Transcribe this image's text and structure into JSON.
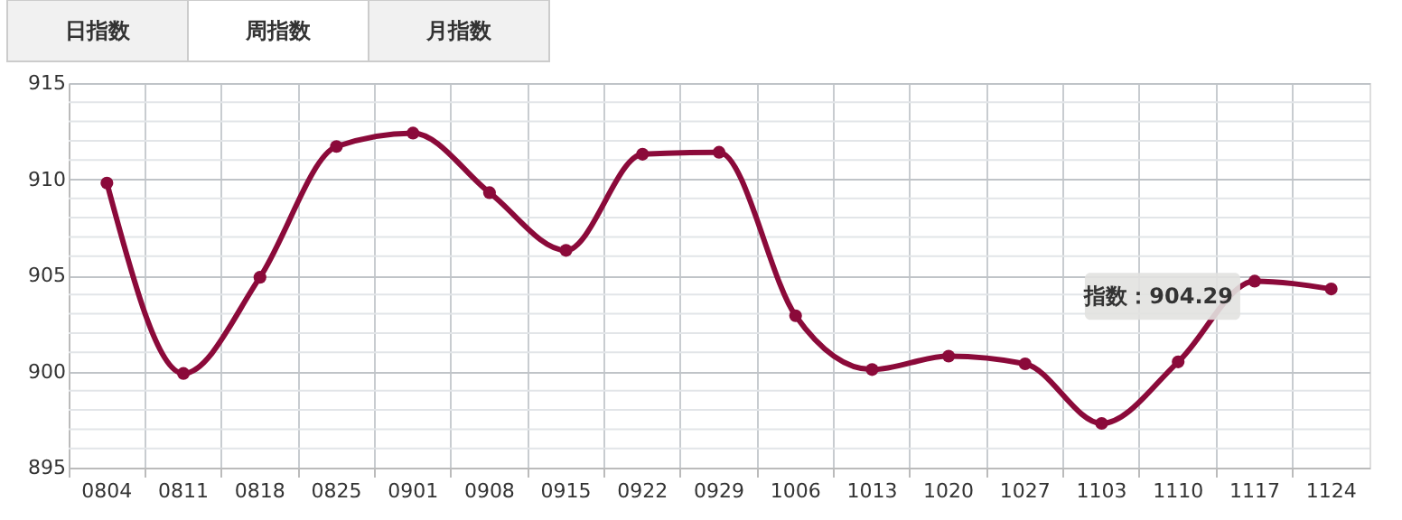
{
  "chart_data": {
    "type": "line",
    "categories": [
      "0804",
      "0811",
      "0818",
      "0825",
      "0901",
      "0908",
      "0915",
      "0922",
      "0929",
      "1006",
      "1013",
      "1020",
      "1027",
      "1103",
      "1110",
      "1117",
      "1124"
    ],
    "series": [
      {
        "color": "#8b0a3a",
        "values": [
          909.8,
          899.9,
          904.9,
          911.7,
          912.4,
          909.3,
          906.3,
          911.3,
          911.4,
          902.9,
          900.1,
          900.8,
          900.4,
          897.3,
          900.5,
          904.7,
          904.29
        ]
      }
    ],
    "ylim": [
      895,
      915
    ],
    "yticks": [
      895,
      {
        "value": 896,
        "label": null
      },
      {
        "value": 897,
        "label": null
      },
      {
        "value": 898,
        "label": null
      },
      {
        "value": 899,
        "label": null
      },
      900,
      {
        "value": 901,
        "label": null
      },
      {
        "value": 902,
        "label": null
      },
      {
        "value": 903,
        "label": null
      },
      {
        "value": 904,
        "label": null
      },
      905,
      {
        "value": 906,
        "label": null
      },
      {
        "value": 907,
        "label": null
      },
      {
        "value": 908,
        "label": null
      },
      {
        "value": 909,
        "label": null
      },
      910,
      {
        "value": 911,
        "label": null
      },
      {
        "value": 912,
        "label": null
      },
      {
        "value": 913,
        "label": null
      },
      {
        "value": 914,
        "label": null
      },
      915
    ],
    "grid": true,
    "marker": "circle",
    "line_style": "solid",
    "annotations": [
      "日指数",
      "周指数",
      "月指数",
      "指数：904.29"
    ]
  }
}
